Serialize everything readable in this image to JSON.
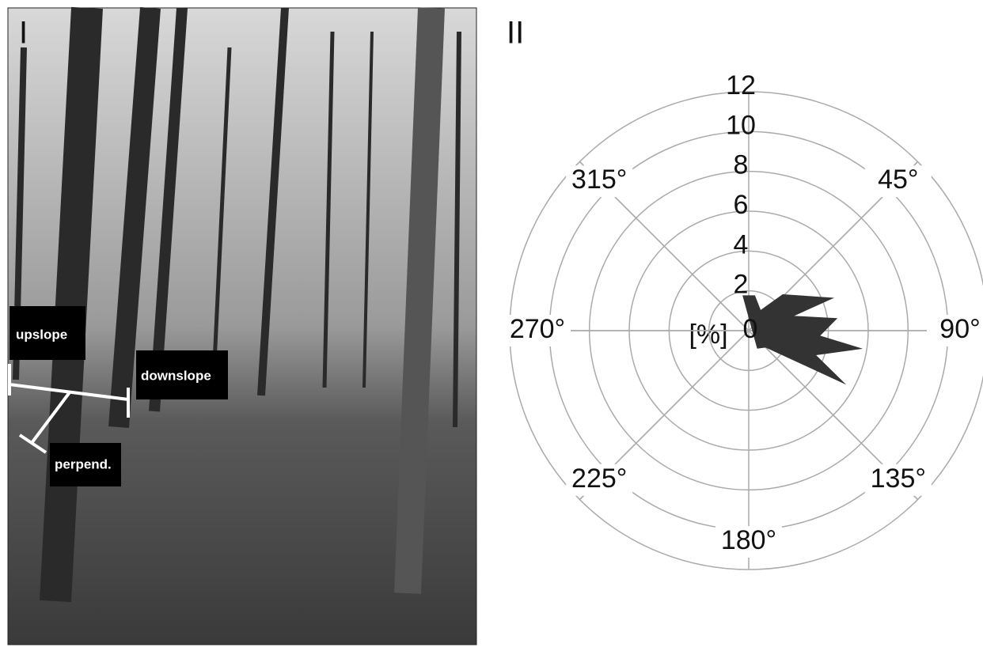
{
  "photo": {
    "panel_label": "I",
    "labels": [
      "upslope",
      "downslope",
      "perpend."
    ]
  },
  "chart_data": {
    "type": "polar_area",
    "panel_label": "II",
    "r_label": "[%]",
    "rlim": [
      0,
      12
    ],
    "rticks": [
      0,
      2,
      4,
      6,
      8,
      10,
      12
    ],
    "thetaticks": [
      {
        "value": 45,
        "label": "45°"
      },
      {
        "value": 90,
        "label": "90°"
      },
      {
        "value": 135,
        "label": "135°"
      },
      {
        "value": 180,
        "label": "180°"
      },
      {
        "value": 225,
        "label": "225°"
      },
      {
        "value": 270,
        "label": "270°"
      },
      {
        "value": 315,
        "label": "315°"
      }
    ],
    "grid": true,
    "series": [
      {
        "color": "#333333",
        "theta": [
          -10,
          10,
          30,
          43,
          69,
          72,
          82,
          94,
          99,
          110,
          119,
          135,
          155
        ],
        "values": [
          1.8,
          1.8,
          1.2,
          2.5,
          4.6,
          2.4,
          4.5,
          3.6,
          5.8,
          3.6,
          5.6,
          1.2,
          1.0
        ]
      }
    ]
  }
}
